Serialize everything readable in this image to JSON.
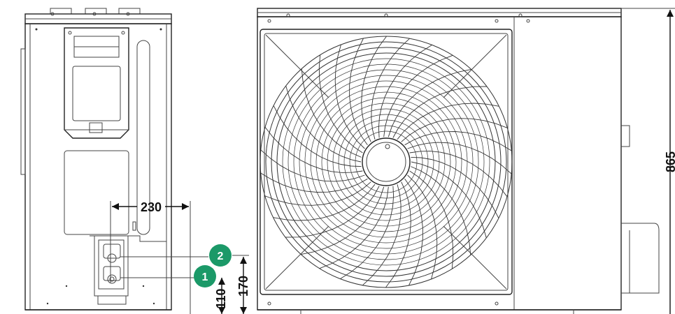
{
  "dimensions": {
    "width_label": "230",
    "height_label": "865",
    "port_2_height_label": "170",
    "port_1_height_label": "110"
  },
  "ports": [
    {
      "number": "1",
      "color": "#1b9968"
    },
    {
      "number": "2",
      "color": "#1b9968"
    }
  ],
  "colors": {
    "line": "#222222",
    "badge": "#1b9968",
    "background": "#ffffff"
  }
}
